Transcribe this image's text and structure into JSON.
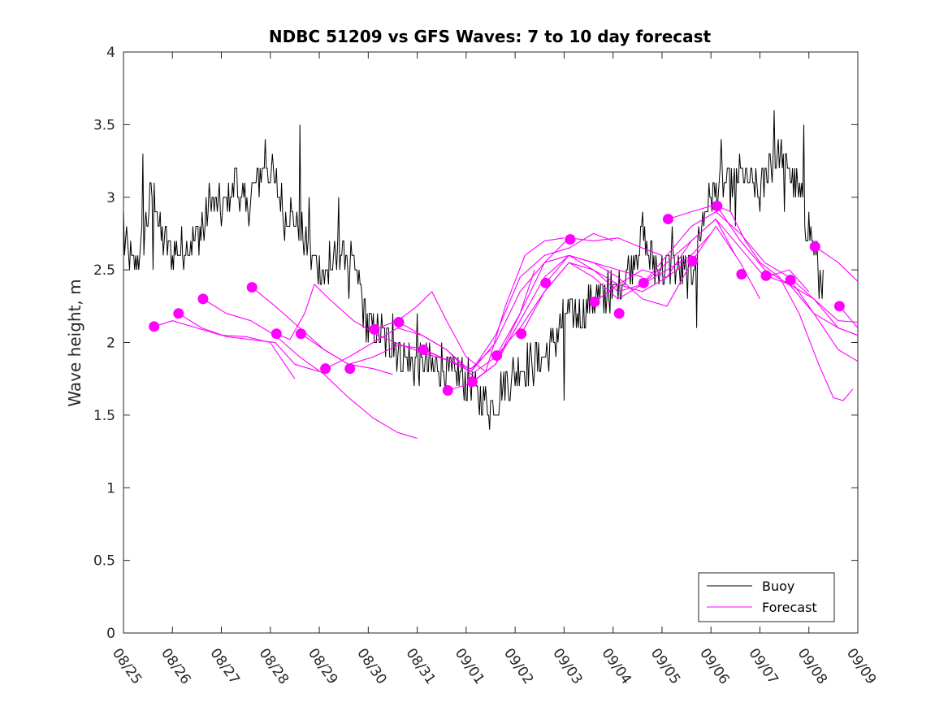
{
  "chart_data": {
    "type": "line",
    "title": "NDBC 51209 vs GFS Waves: 7 to 10 day forecast",
    "xlabel": "",
    "ylabel": "Wave height, m",
    "x_unit": "days since 08/25 00:00",
    "xlim": [
      0,
      15
    ],
    "ylim": [
      0,
      4
    ],
    "grid": false,
    "legend_position": "bottom-right",
    "x_tick_labels": [
      "08/25",
      "08/26",
      "08/27",
      "08/28",
      "08/29",
      "08/30",
      "08/31",
      "09/01",
      "09/02",
      "09/03",
      "09/04",
      "09/05",
      "09/06",
      "09/07",
      "09/08",
      "09/09"
    ],
    "y_ticks": [
      0,
      0.5,
      1,
      1.5,
      2,
      2.5,
      3,
      3.5,
      4
    ],
    "y_tick_labels": [
      "0",
      "0.5",
      "1",
      "1.5",
      "2",
      "2.5",
      "3",
      "3.5",
      "4"
    ],
    "legend": [
      {
        "name": "Buoy",
        "color": "#000000"
      },
      {
        "name": "Forecast",
        "color": "#ff00ff"
      }
    ],
    "colors": {
      "buoy": "#000000",
      "forecast": "#ff00ff"
    },
    "buoy_anchor_points": [
      [
        0,
        2.7
      ],
      [
        0.2,
        2.5
      ],
      [
        0.4,
        2.7
      ],
      [
        0.6,
        3.1
      ],
      [
        0.8,
        2.7
      ],
      [
        1.0,
        2.6
      ],
      [
        1.3,
        2.7
      ],
      [
        1.6,
        2.75
      ],
      [
        1.8,
        3.0
      ],
      [
        2.0,
        2.9
      ],
      [
        2.3,
        3.1
      ],
      [
        2.5,
        2.9
      ],
      [
        2.7,
        3.1
      ],
      [
        2.9,
        3.25
      ],
      [
        3.1,
        3.1
      ],
      [
        3.3,
        2.95
      ],
      [
        3.4,
        2.9
      ],
      [
        3.6,
        2.8
      ],
      [
        3.8,
        2.6
      ],
      [
        4.0,
        2.5
      ],
      [
        4.2,
        2.45
      ],
      [
        4.4,
        2.6
      ],
      [
        4.6,
        2.6
      ],
      [
        4.8,
        2.4
      ],
      [
        5.0,
        2.1
      ],
      [
        5.3,
        2.05
      ],
      [
        5.6,
        1.95
      ],
      [
        5.9,
        1.85
      ],
      [
        6.2,
        1.85
      ],
      [
        6.6,
        1.8
      ],
      [
        7.0,
        1.75
      ],
      [
        7.3,
        1.6
      ],
      [
        7.5,
        1.55
      ],
      [
        7.7,
        1.65
      ],
      [
        8.0,
        1.8
      ],
      [
        8.3,
        1.85
      ],
      [
        8.6,
        1.9
      ],
      [
        8.8,
        2.0
      ],
      [
        9.0,
        2.2
      ],
      [
        9.3,
        2.2
      ],
      [
        9.6,
        2.3
      ],
      [
        9.9,
        2.3
      ],
      [
        10.2,
        2.45
      ],
      [
        10.4,
        2.55
      ],
      [
        10.6,
        2.75
      ],
      [
        10.8,
        2.55
      ],
      [
        11.0,
        2.5
      ],
      [
        11.2,
        2.55
      ],
      [
        11.4,
        2.45
      ],
      [
        11.6,
        2.5
      ],
      [
        11.8,
        2.8
      ],
      [
        12.0,
        3.0
      ],
      [
        12.2,
        3.1
      ],
      [
        12.4,
        3.05
      ],
      [
        12.6,
        3.15
      ],
      [
        12.8,
        3.1
      ],
      [
        13.0,
        3.0
      ],
      [
        13.2,
        3.25
      ],
      [
        13.4,
        3.3
      ],
      [
        13.6,
        3.2
      ],
      [
        13.8,
        3.0
      ],
      [
        14.0,
        2.8
      ],
      [
        14.2,
        2.55
      ],
      [
        14.3,
        2.4
      ]
    ],
    "buoy_spikes": [
      [
        0.0,
        2.9
      ],
      [
        0.4,
        3.3
      ],
      [
        0.6,
        2.5
      ],
      [
        1.6,
        2.9
      ],
      [
        2.3,
        3.2
      ],
      [
        2.9,
        3.4
      ],
      [
        3.1,
        3.1
      ],
      [
        3.3,
        2.7
      ],
      [
        3.6,
        3.5
      ],
      [
        3.8,
        3.0
      ],
      [
        4.2,
        2.7
      ],
      [
        4.4,
        3.0
      ],
      [
        4.6,
        2.3
      ],
      [
        5.1,
        2.2
      ],
      [
        5.5,
        2.2
      ],
      [
        6.0,
        2.2
      ],
      [
        6.5,
        2.0
      ],
      [
        7.6,
        1.5
      ],
      [
        8.9,
        2.1
      ],
      [
        9.0,
        1.6
      ],
      [
        9.9,
        2.5
      ],
      [
        10.6,
        2.9
      ],
      [
        11.2,
        2.8
      ],
      [
        11.7,
        2.1
      ],
      [
        12.2,
        3.4
      ],
      [
        12.5,
        2.8
      ],
      [
        13.3,
        3.6
      ],
      [
        13.5,
        2.9
      ],
      [
        13.7,
        3.2
      ],
      [
        13.9,
        3.5
      ],
      [
        14.2,
        2.3
      ]
    ],
    "forecast_markers": [
      [
        0.625,
        2.11
      ],
      [
        1.125,
        2.2
      ],
      [
        1.625,
        2.3
      ],
      [
        2.625,
        2.38
      ],
      [
        3.125,
        2.06
      ],
      [
        3.625,
        2.06
      ],
      [
        4.125,
        1.82
      ],
      [
        4.625,
        1.82
      ],
      [
        5.125,
        2.09
      ],
      [
        5.625,
        2.14
      ],
      [
        6.125,
        1.95
      ],
      [
        6.625,
        1.67
      ],
      [
        7.125,
        1.73
      ],
      [
        7.625,
        1.91
      ],
      [
        8.125,
        2.06
      ],
      [
        8.625,
        2.41
      ],
      [
        9.125,
        2.71
      ],
      [
        9.625,
        2.28
      ],
      [
        10.125,
        2.2
      ],
      [
        10.625,
        2.41
      ],
      [
        11.125,
        2.85
      ],
      [
        11.625,
        2.56
      ],
      [
        12.125,
        2.94
      ],
      [
        12.625,
        2.47
      ],
      [
        13.125,
        2.46
      ],
      [
        13.625,
        2.43
      ],
      [
        14.125,
        2.66
      ],
      [
        14.625,
        2.25
      ]
    ],
    "forecast_runs": [
      [
        [
          0.625,
          2.11
        ],
        [
          1.0,
          2.15
        ],
        [
          1.5,
          2.1
        ],
        [
          2.0,
          2.05
        ],
        [
          2.5,
          2.04
        ],
        [
          3.0,
          2.0
        ],
        [
          3.5,
          1.75
        ]
      ],
      [
        [
          1.125,
          2.2
        ],
        [
          1.6,
          2.1
        ],
        [
          2.1,
          2.04
        ],
        [
          2.6,
          2.02
        ],
        [
          3.1,
          2.0
        ],
        [
          3.5,
          1.85
        ],
        [
          4.0,
          1.8
        ]
      ],
      [
        [
          1.625,
          2.3
        ],
        [
          2.1,
          2.2
        ],
        [
          2.6,
          2.15
        ],
        [
          3.1,
          2.05
        ],
        [
          3.6,
          1.9
        ],
        [
          4.1,
          1.78
        ],
        [
          4.6,
          1.62
        ],
        [
          5.1,
          1.48
        ],
        [
          5.6,
          1.38
        ],
        [
          6.0,
          1.34
        ]
      ],
      [
        [
          2.625,
          2.38
        ],
        [
          3.1,
          2.25
        ],
        [
          3.6,
          2.1
        ],
        [
          4.1,
          1.95
        ],
        [
          4.6,
          1.85
        ],
        [
          5.1,
          1.82
        ],
        [
          5.5,
          1.78
        ]
      ],
      [
        [
          3.125,
          2.06
        ],
        [
          3.4,
          2.02
        ],
        [
          3.7,
          2.2
        ],
        [
          3.9,
          2.4
        ],
        [
          4.2,
          2.3
        ],
        [
          4.7,
          2.15
        ],
        [
          5.2,
          2.05
        ],
        [
          5.7,
          1.98
        ],
        [
          6.2,
          1.92
        ],
        [
          6.6,
          1.88
        ]
      ],
      [
        [
          3.625,
          2.06
        ],
        [
          4.1,
          1.95
        ],
        [
          4.6,
          1.85
        ],
        [
          5.1,
          1.9
        ],
        [
          5.6,
          1.98
        ],
        [
          6.1,
          1.96
        ],
        [
          6.6,
          1.88
        ],
        [
          7.1,
          1.82
        ],
        [
          7.5,
          1.95
        ]
      ],
      [
        [
          4.125,
          1.82
        ],
        [
          4.6,
          1.9
        ],
        [
          5.1,
          2.0
        ],
        [
          5.6,
          2.1
        ],
        [
          6.1,
          2.05
        ],
        [
          6.6,
          1.95
        ],
        [
          7.1,
          1.78
        ],
        [
          7.6,
          1.9
        ],
        [
          8.1,
          2.2
        ],
        [
          8.4,
          2.5
        ]
      ],
      [
        [
          5.125,
          2.09
        ],
        [
          5.6,
          2.15
        ],
        [
          6.0,
          2.25
        ],
        [
          6.3,
          2.35
        ],
        [
          6.6,
          2.15
        ],
        [
          7.0,
          1.9
        ],
        [
          7.4,
          1.8
        ],
        [
          7.8,
          2.25
        ],
        [
          8.2,
          2.6
        ],
        [
          8.6,
          2.7
        ],
        [
          9.0,
          2.72
        ]
      ],
      [
        [
          5.625,
          2.14
        ],
        [
          6.1,
          2.05
        ],
        [
          6.6,
          1.95
        ],
        [
          7.1,
          1.8
        ],
        [
          7.6,
          2.05
        ],
        [
          8.1,
          2.45
        ],
        [
          8.6,
          2.6
        ],
        [
          9.1,
          2.65
        ],
        [
          9.6,
          2.75
        ],
        [
          10.0,
          2.7
        ]
      ],
      [
        [
          6.125,
          1.95
        ],
        [
          6.6,
          1.88
        ],
        [
          7.1,
          1.8
        ],
        [
          7.6,
          2.0
        ],
        [
          8.1,
          2.35
        ],
        [
          8.6,
          2.55
        ],
        [
          9.1,
          2.6
        ],
        [
          9.6,
          2.55
        ],
        [
          10.1,
          2.5
        ],
        [
          10.6,
          2.45
        ]
      ],
      [
        [
          6.625,
          1.67
        ],
        [
          7.1,
          1.72
        ],
        [
          7.6,
          1.85
        ],
        [
          8.1,
          2.2
        ],
        [
          8.6,
          2.55
        ],
        [
          9.1,
          2.72
        ],
        [
          9.6,
          2.7
        ],
        [
          10.1,
          2.72
        ],
        [
          10.6,
          2.65
        ],
        [
          11.0,
          2.6
        ]
      ],
      [
        [
          7.125,
          1.73
        ],
        [
          7.6,
          1.85
        ],
        [
          8.1,
          2.15
        ],
        [
          8.6,
          2.45
        ],
        [
          9.1,
          2.6
        ],
        [
          9.6,
          2.5
        ],
        [
          10.1,
          2.4
        ],
        [
          10.6,
          2.35
        ],
        [
          11.1,
          2.45
        ],
        [
          11.5,
          2.55
        ]
      ],
      [
        [
          7.625,
          1.91
        ],
        [
          8.1,
          2.1
        ],
        [
          8.6,
          2.35
        ],
        [
          9.1,
          2.55
        ],
        [
          9.6,
          2.5
        ],
        [
          10.1,
          2.35
        ],
        [
          10.6,
          2.4
        ],
        [
          11.1,
          2.5
        ],
        [
          11.6,
          2.6
        ],
        [
          12.0,
          2.75
        ]
      ],
      [
        [
          8.125,
          2.06
        ],
        [
          8.6,
          2.35
        ],
        [
          9.1,
          2.55
        ],
        [
          9.6,
          2.45
        ],
        [
          10.1,
          2.3
        ],
        [
          10.6,
          2.4
        ],
        [
          11.1,
          2.55
        ],
        [
          11.6,
          2.7
        ],
        [
          12.1,
          2.85
        ],
        [
          12.5,
          2.6
        ]
      ],
      [
        [
          8.625,
          2.41
        ],
        [
          9.1,
          2.6
        ],
        [
          9.6,
          2.55
        ],
        [
          10.1,
          2.45
        ],
        [
          10.6,
          2.3
        ],
        [
          11.1,
          2.25
        ],
        [
          11.6,
          2.55
        ],
        [
          12.1,
          2.8
        ],
        [
          12.6,
          2.55
        ],
        [
          13.0,
          2.3
        ]
      ],
      [
        [
          9.625,
          2.28
        ],
        [
          10.1,
          2.4
        ],
        [
          10.6,
          2.5
        ],
        [
          11.1,
          2.45
        ],
        [
          11.6,
          2.7
        ],
        [
          12.1,
          2.85
        ],
        [
          12.6,
          2.65
        ],
        [
          13.1,
          2.45
        ],
        [
          13.6,
          2.5
        ],
        [
          14.0,
          2.35
        ]
      ],
      [
        [
          10.625,
          2.41
        ],
        [
          11.1,
          2.6
        ],
        [
          11.6,
          2.8
        ],
        [
          12.1,
          2.9
        ],
        [
          12.6,
          2.75
        ],
        [
          13.1,
          2.55
        ],
        [
          13.6,
          2.45
        ],
        [
          14.1,
          2.3
        ],
        [
          14.6,
          2.15
        ],
        [
          15.0,
          2.14
        ]
      ],
      [
        [
          11.125,
          2.85
        ],
        [
          11.6,
          2.9
        ],
        [
          12.1,
          2.95
        ],
        [
          12.6,
          2.7
        ],
        [
          13.1,
          2.5
        ],
        [
          13.6,
          2.4
        ],
        [
          14.1,
          2.2
        ],
        [
          14.6,
          2.1
        ],
        [
          15.0,
          2.05
        ]
      ],
      [
        [
          12.125,
          2.94
        ],
        [
          12.4,
          2.9
        ],
        [
          12.7,
          2.7
        ],
        [
          13.0,
          2.55
        ],
        [
          13.4,
          2.45
        ],
        [
          13.8,
          2.2
        ],
        [
          14.2,
          1.85
        ],
        [
          14.5,
          1.62
        ],
        [
          14.7,
          1.6
        ],
        [
          14.9,
          1.68
        ]
      ],
      [
        [
          13.125,
          2.46
        ],
        [
          13.6,
          2.4
        ],
        [
          14.1,
          2.3
        ],
        [
          14.6,
          2.1
        ],
        [
          15.0,
          2.05
        ]
      ],
      [
        [
          13.625,
          2.43
        ],
        [
          14.1,
          2.2
        ],
        [
          14.6,
          1.95
        ],
        [
          15.0,
          1.87
        ]
      ],
      [
        [
          14.125,
          2.66
        ],
        [
          14.6,
          2.55
        ],
        [
          15.0,
          2.42
        ]
      ],
      [
        [
          14.625,
          2.25
        ],
        [
          15.0,
          2.1
        ]
      ]
    ]
  }
}
